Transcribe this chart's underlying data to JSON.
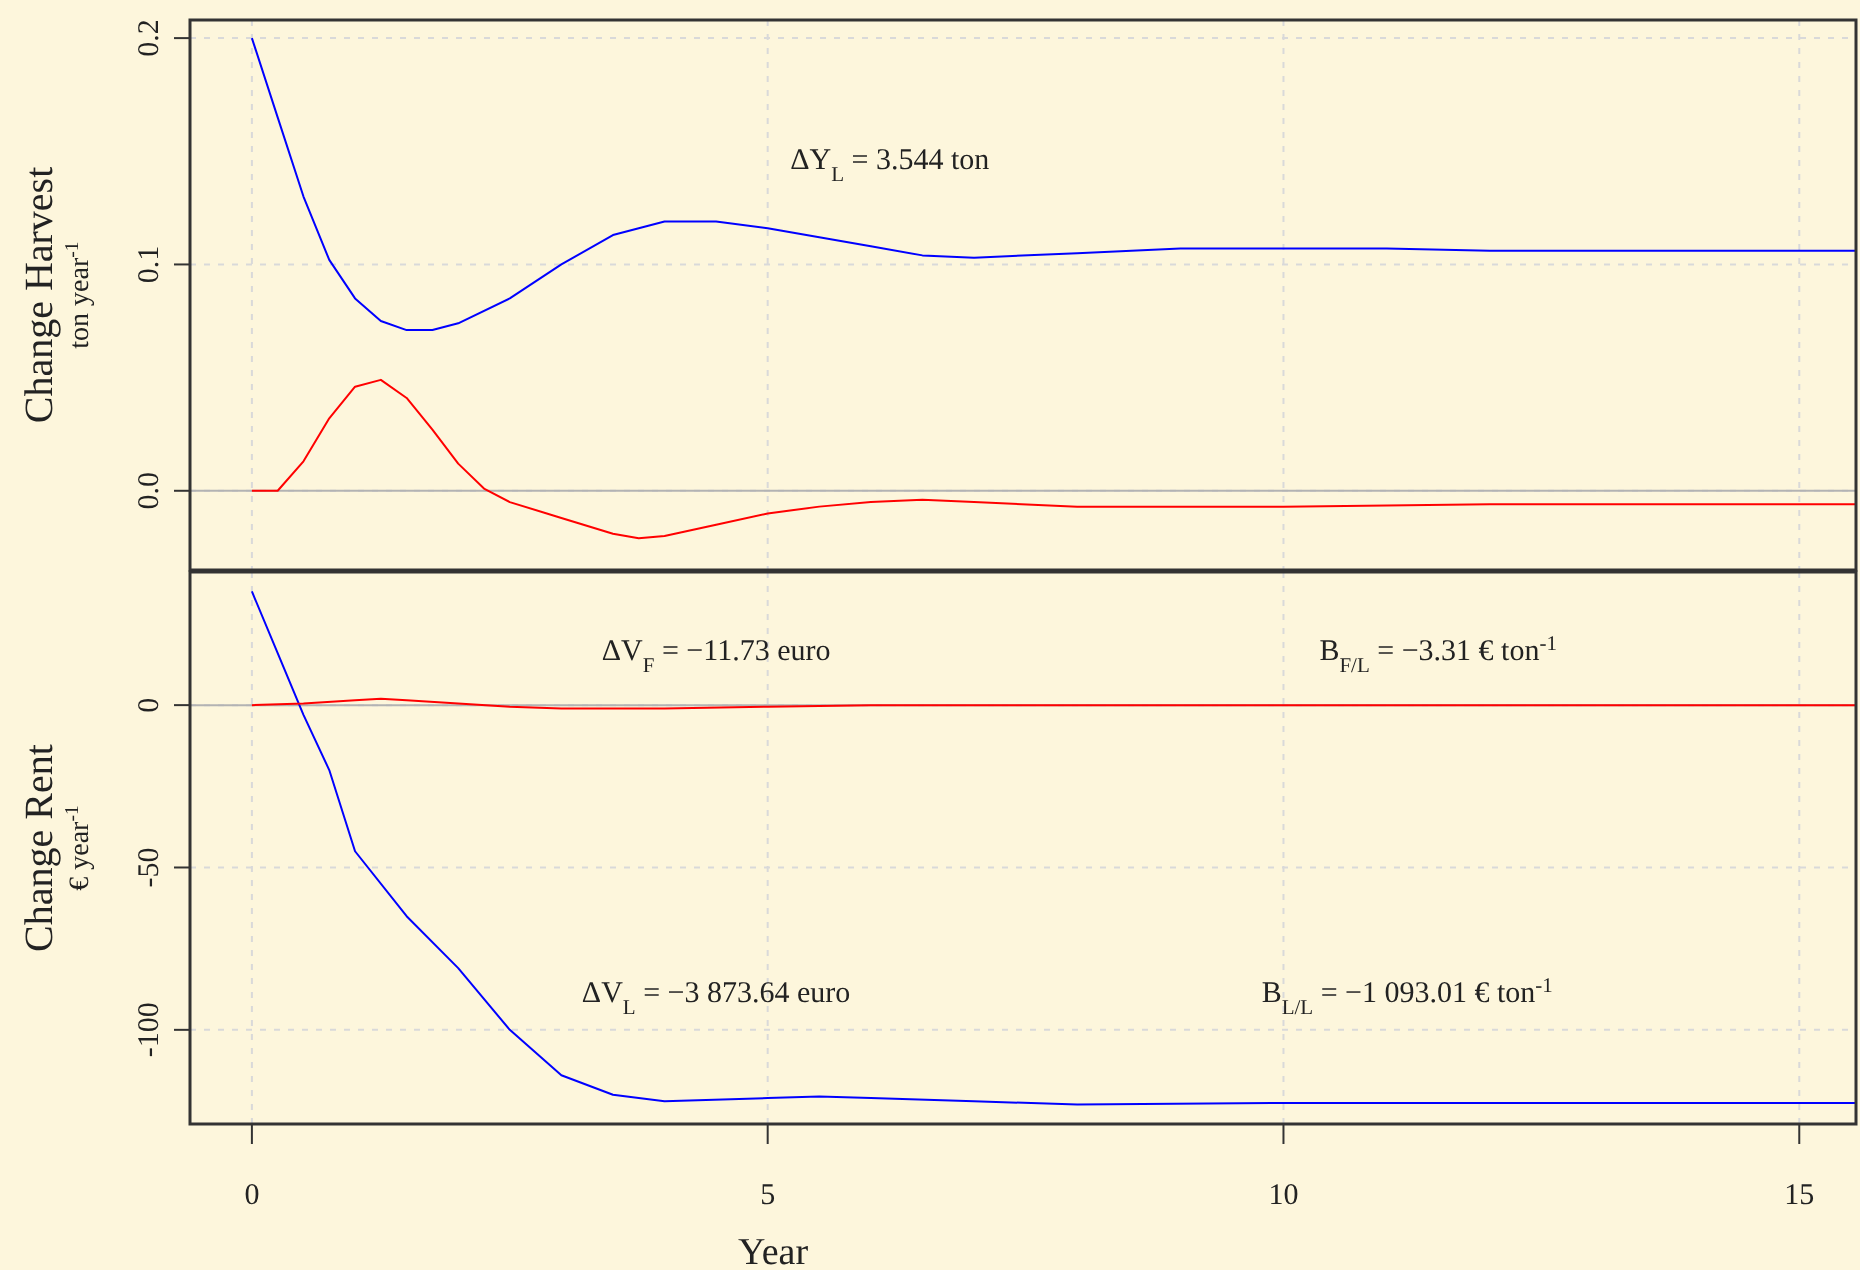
{
  "chart_data": [
    {
      "type": "line",
      "ylabel": "Change Harvest\nton year$^{-1}$",
      "xlim": [
        -0.6,
        15.55
      ],
      "xticks": [
        0,
        5,
        10,
        15
      ],
      "ylim": [
        -0.035,
        0.208
      ],
      "yticks": [
        {
          "value": 0,
          "label": "0.0"
        },
        {
          "value": 0.1,
          "label": "0.1"
        },
        {
          "value": 0.2,
          "label": "0.2"
        }
      ],
      "tick_labels": "y",
      "grid": true,
      "line_style": "solid",
      "ref_lines": [
        {
          "axis": "y",
          "value": 0,
          "color": "#b3b3b3"
        }
      ],
      "annotations": [
        "ΔY$_{L}$ = 3.544 ton"
      ],
      "series": [
        {
          "color": "#0000ff",
          "x": [
            0,
            0.25,
            0.5,
            0.75,
            1,
            1.25,
            1.5,
            1.75,
            2,
            2.5,
            3,
            3.5,
            4,
            4.5,
            5,
            5.5,
            6,
            6.5,
            7,
            8,
            9,
            10,
            11,
            12,
            13,
            15.55
          ],
          "values": [
            0.2,
            0.165,
            0.13,
            0.102,
            0.085,
            0.075,
            0.071,
            0.071,
            0.074,
            0.085,
            0.1,
            0.113,
            0.119,
            0.119,
            0.116,
            0.112,
            0.108,
            0.104,
            0.103,
            0.105,
            0.107,
            0.107,
            0.107,
            0.106,
            0.106,
            0.106
          ]
        },
        {
          "color": "#ff0000",
          "x": [
            0,
            0.25,
            0.5,
            0.75,
            1,
            1.25,
            1.5,
            1.75,
            2,
            2.25,
            2.5,
            3,
            3.5,
            3.75,
            4,
            4.5,
            5,
            5.5,
            6,
            6.5,
            7,
            8,
            9,
            10,
            12,
            15.55
          ],
          "values": [
            0,
            0,
            0.013,
            0.032,
            0.046,
            0.049,
            0.041,
            0.027,
            0.012,
            0.001,
            -0.005,
            -0.012,
            -0.019,
            -0.021,
            -0.02,
            -0.015,
            -0.01,
            -0.007,
            -0.005,
            -0.004,
            -0.005,
            -0.007,
            -0.007,
            -0.007,
            -0.006,
            -0.006
          ]
        }
      ]
    },
    {
      "type": "line",
      "ylabel": "Change Rent\n€ year$^{-1}$",
      "xlabel": "Year",
      "xlim": [
        -0.6,
        15.55
      ],
      "xticks": [
        0,
        5,
        10,
        15
      ],
      "ylim": [
        -129,
        41
      ],
      "yticks": [
        -100,
        -50,
        0
      ],
      "grid": true,
      "line_style": "solid",
      "ref_lines": [
        {
          "axis": "y",
          "value": 0,
          "color": "#b3b3b3"
        }
      ],
      "annotations": [
        "ΔV$_{F}$ = −11.73 euro",
        "B$_{F/L}$ = −3.31 € ton$^{-1}$",
        "ΔV$_{L}$ = −3 873.64 euro",
        "B$_{L/L}$ = −1 093.01 € ton$^{-1}$"
      ],
      "series": [
        {
          "color": "#0000ff",
          "x": [
            0,
            0.25,
            0.5,
            0.75,
            1,
            1.5,
            2,
            2.5,
            3,
            3.5,
            4,
            5,
            5.5,
            6,
            7,
            8,
            10,
            15.55
          ],
          "values": [
            35,
            16,
            -3,
            -20,
            -45,
            -65,
            -81,
            -100,
            -114,
            -120,
            -122,
            -121,
            -120.5,
            -121,
            -122,
            -123,
            -122.5,
            -122.5
          ]
        },
        {
          "color": "#ff0000",
          "x": [
            0,
            0.5,
            1,
            1.25,
            1.5,
            2,
            2.5,
            3,
            3.5,
            4,
            5,
            6,
            8,
            10,
            15.55
          ],
          "values": [
            0,
            0.5,
            1.5,
            2,
            1.5,
            0.5,
            -0.5,
            -1,
            -1,
            -1,
            -0.5,
            0,
            0,
            0,
            0
          ]
        }
      ]
    }
  ]
}
